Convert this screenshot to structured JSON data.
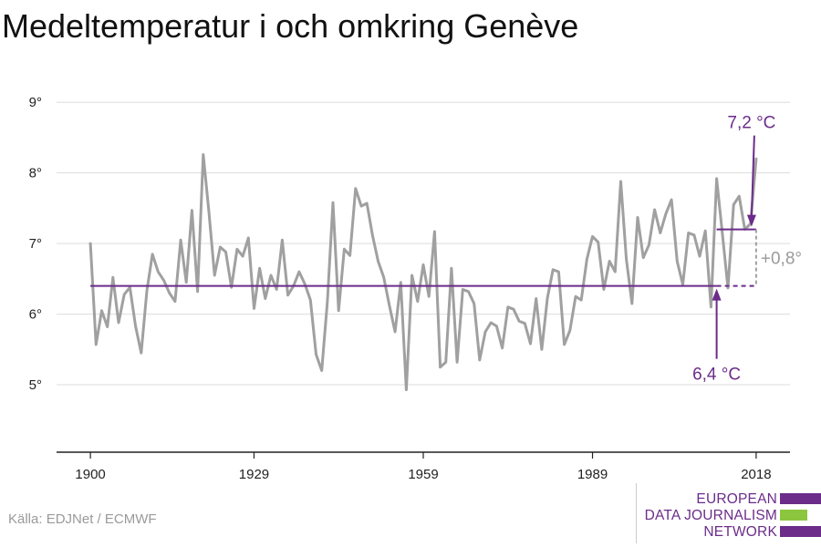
{
  "page": {
    "title": "Medeltemperatur i och omkring Genève",
    "source": "Källa: EDJNet / ECMWF"
  },
  "logo": {
    "line1": "EUROPEAN",
    "line2": "DATA JOURNALISM",
    "line3": "NETWORK",
    "colors": {
      "purple": "#6b2c8a",
      "green": "#8cc63f"
    }
  },
  "chart_data": {
    "type": "line",
    "title": "Medeltemperatur i och omkring Genève",
    "ylim": [
      4.2,
      9.3
    ],
    "xlim": [
      1894,
      2024
    ],
    "yticks": [
      5,
      6,
      7,
      8,
      9
    ],
    "ytick_labels": [
      "5°",
      "6°",
      "7°",
      "8°",
      "9°"
    ],
    "xticks": [
      1900,
      1929,
      1959,
      1989,
      2018
    ],
    "xtick_labels": [
      "1900",
      "1929",
      "1959",
      "1989",
      "2018"
    ],
    "grid": "horizontal",
    "colors": {
      "series": "#a0a0a0",
      "reference": "#6b2c8a",
      "diff": "#a0a0a0",
      "grid": "#dddddd"
    },
    "series": [
      {
        "x": [
          1900,
          1901,
          1902,
          1903,
          1904,
          1905,
          1906,
          1907,
          1908,
          1909,
          1910,
          1911,
          1912,
          1913,
          1914,
          1915,
          1916,
          1917,
          1918,
          1919,
          1920,
          1921,
          1922,
          1923,
          1924,
          1925,
          1926,
          1927,
          1928,
          1929,
          1930,
          1931,
          1932,
          1933,
          1934,
          1935,
          1936,
          1937,
          1938,
          1939,
          1940,
          1941,
          1942,
          1943,
          1944,
          1945,
          1946,
          1947,
          1948,
          1949,
          1950,
          1951,
          1952,
          1953,
          1954,
          1955,
          1956,
          1957,
          1958,
          1959,
          1960,
          1961,
          1962,
          1963,
          1964,
          1965,
          1966,
          1967,
          1968,
          1969,
          1970,
          1971,
          1972,
          1973,
          1974,
          1975,
          1976,
          1977,
          1978,
          1979,
          1980,
          1981,
          1982,
          1983,
          1984,
          1985,
          1986,
          1987,
          1988,
          1989,
          1990,
          1991,
          1992,
          1993,
          1994,
          1995,
          1996,
          1997,
          1998,
          1999,
          2000,
          2001,
          2002,
          2003,
          2004,
          2005,
          2006,
          2007,
          2008,
          2009,
          2010,
          2011,
          2012,
          2013,
          2014,
          2015,
          2016,
          2017,
          2018
        ],
        "values": [
          7.0,
          5.57,
          6.05,
          5.82,
          6.52,
          5.88,
          6.28,
          6.38,
          5.83,
          5.45,
          6.33,
          6.85,
          6.6,
          6.48,
          6.3,
          6.18,
          7.05,
          6.45,
          7.47,
          6.32,
          8.26,
          7.45,
          6.55,
          6.95,
          6.88,
          6.38,
          6.92,
          6.82,
          7.08,
          6.08,
          6.65,
          6.22,
          6.55,
          6.35,
          7.05,
          6.27,
          6.4,
          6.6,
          6.43,
          6.2,
          5.43,
          5.2,
          6.18,
          7.58,
          6.05,
          6.92,
          6.83,
          7.78,
          7.53,
          7.57,
          7.12,
          6.75,
          6.52,
          6.12,
          5.75,
          6.45,
          4.93,
          6.55,
          6.18,
          6.7,
          6.25,
          7.17,
          5.25,
          5.32,
          6.65,
          5.32,
          6.35,
          6.32,
          6.15,
          5.35,
          5.75,
          5.88,
          5.83,
          5.52,
          6.1,
          6.07,
          5.9,
          5.87,
          5.58,
          6.22,
          5.5,
          6.23,
          6.63,
          6.6,
          5.57,
          5.77,
          6.25,
          6.2,
          6.78,
          7.1,
          7.02,
          6.35,
          6.75,
          6.6,
          7.88,
          6.78,
          6.15,
          7.37,
          6.8,
          6.98,
          7.48,
          7.15,
          7.42,
          7.62,
          6.75,
          6.42,
          7.15,
          7.12,
          6.82,
          7.18,
          6.1,
          7.92,
          7.15,
          6.37,
          7.55,
          7.67,
          7.2,
          7.28,
          8.2
        ]
      }
    ],
    "reference": {
      "baseline_value": 6.4,
      "baseline_label": "6,4 °C",
      "recent_value": 7.2,
      "recent_label": "7,2 °C",
      "recent_from": 2011,
      "diff_label": "+0,8°"
    }
  }
}
